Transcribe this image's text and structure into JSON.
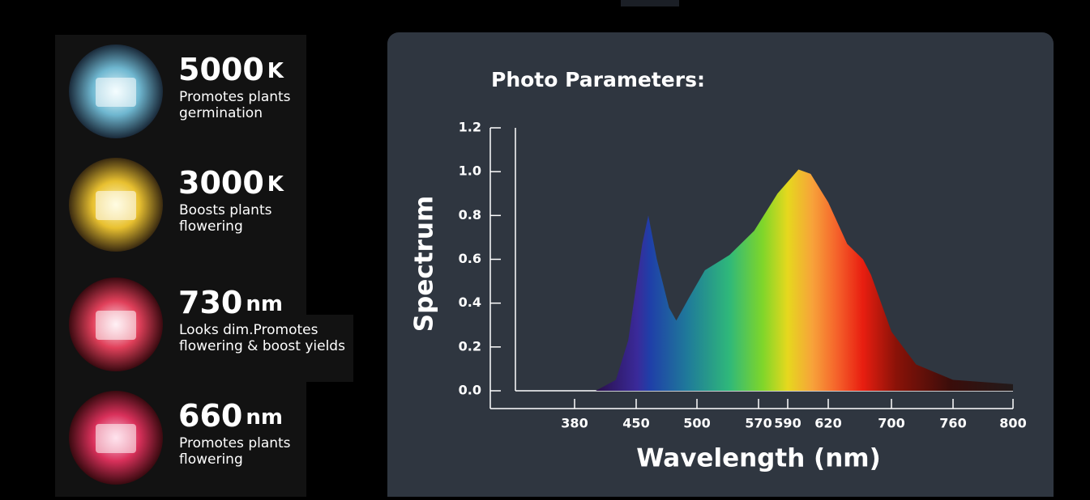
{
  "features": [
    {
      "value": "5000",
      "unit": "K",
      "lines": [
        "Promotes plants",
        "germination"
      ]
    },
    {
      "value": "3000",
      "unit": "K",
      "lines": [
        "Boosts plants",
        "flowering"
      ]
    },
    {
      "value": "730",
      "unit": "nm",
      "lines": [
        "Looks dim.Promotes",
        "flowering & boost yields"
      ]
    },
    {
      "value": "660",
      "unit": "nm",
      "lines": [
        "Promotes plants",
        "flowering"
      ]
    }
  ],
  "chart_data": {
    "type": "area",
    "title": "Photo Parameters:",
    "x_label": "Wavelength (nm)",
    "y_label": "Spectrum",
    "x": [
      404,
      427,
      441,
      455,
      460,
      467,
      477,
      483,
      493,
      509,
      537,
      565,
      583,
      598,
      607,
      620,
      644,
      664,
      674,
      700,
      724,
      760,
      800
    ],
    "values": [
      0.0,
      0.05,
      0.23,
      0.67,
      0.8,
      0.6,
      0.38,
      0.32,
      0.42,
      0.55,
      0.62,
      0.73,
      0.9,
      1.01,
      0.99,
      0.86,
      0.67,
      0.6,
      0.53,
      0.27,
      0.12,
      0.05,
      0.03
    ],
    "xlim": [
      380,
      800
    ],
    "xticks": [
      380,
      450,
      500,
      570,
      590,
      620,
      700,
      760,
      800
    ],
    "ylim": [
      0,
      1.2
    ],
    "yticks": [
      {
        "value": 0,
        "label": "0.0"
      },
      {
        "value": 0.2,
        "label": "0.2"
      },
      {
        "value": 0.4,
        "label": "0.4"
      },
      {
        "value": 0.6,
        "label": "0.6"
      },
      {
        "value": 0.8,
        "label": "0.8"
      },
      {
        "value": 1,
        "label": "1.0"
      },
      {
        "value": 1.2,
        "label": "1.2"
      }
    ],
    "grid": false
  }
}
